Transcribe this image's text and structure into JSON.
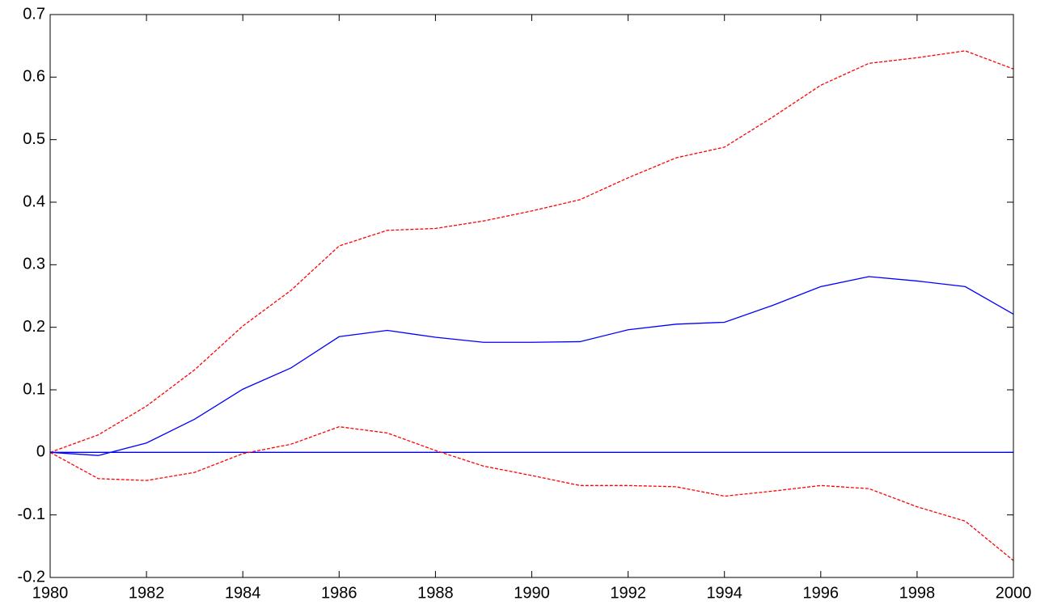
{
  "chart_data": {
    "type": "line",
    "x": [
      1980,
      1981,
      1982,
      1983,
      1984,
      1985,
      1986,
      1987,
      1988,
      1989,
      1990,
      1991,
      1992,
      1993,
      1994,
      1995,
      1996,
      1997,
      1998,
      1999,
      2000
    ],
    "series": [
      {
        "color": "#0000ff",
        "linestyle": "solid",
        "values": [
          0,
          0,
          0,
          0,
          0,
          0,
          0,
          0,
          0,
          0,
          0,
          0,
          0,
          0,
          0,
          0,
          0,
          0,
          0,
          0,
          0
        ]
      },
      {
        "color": "#ff0000",
        "linestyle": "dashed",
        "values": [
          0,
          0.028,
          0.074,
          0.132,
          0.202,
          0.259,
          0.33,
          0.355,
          0.358,
          0.37,
          0.386,
          0.404,
          0.439,
          0.471,
          0.488,
          0.536,
          0.587,
          0.622,
          0.631,
          0.642,
          0.613
        ]
      },
      {
        "color": "#ff0000",
        "linestyle": "dashed",
        "values": [
          0,
          -0.042,
          -0.045,
          -0.032,
          -0.002,
          0.013,
          0.041,
          0.031,
          0.003,
          -0.022,
          -0.037,
          -0.053,
          -0.053,
          -0.055,
          -0.07,
          -0.062,
          -0.053,
          -0.058,
          -0.087,
          -0.11,
          -0.173
        ]
      },
      {
        "color": "#0000ff",
        "linestyle": "solid",
        "values": [
          0,
          -0.005,
          0.015,
          0.053,
          0.101,
          0.135,
          0.185,
          0.195,
          0.184,
          0.176,
          0.176,
          0.177,
          0.196,
          0.205,
          0.208,
          0.235,
          0.265,
          0.281,
          0.274,
          0.265,
          0.221
        ]
      }
    ],
    "xlim": [
      1980,
      2000
    ],
    "xticks": [
      1980,
      1982,
      1984,
      1986,
      1988,
      1990,
      1992,
      1994,
      1996,
      1998,
      2000
    ],
    "ylim": [
      -0.2,
      0.7
    ],
    "yticks": [
      -0.2,
      -0.1,
      0,
      0.1,
      0.2,
      0.3,
      0.4,
      0.5,
      0.6,
      0.7
    ],
    "grid": false
  }
}
